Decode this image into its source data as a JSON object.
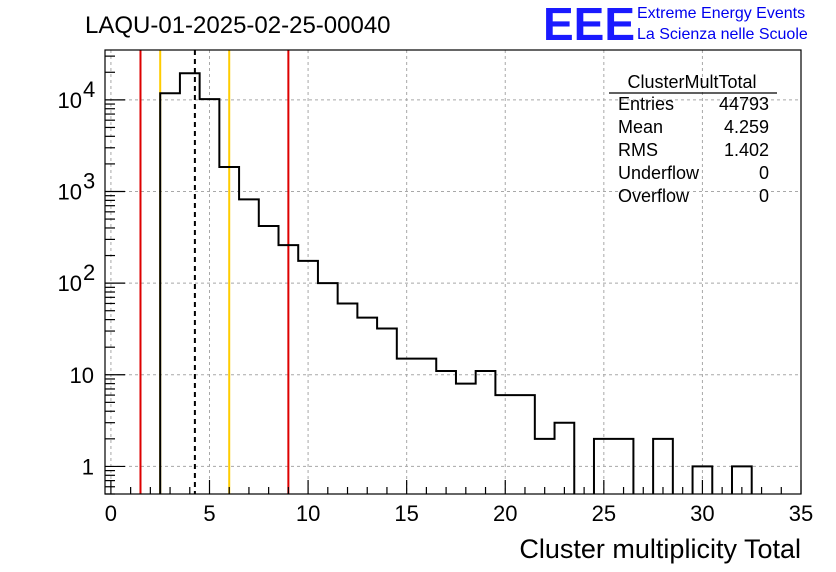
{
  "chart_data": {
    "type": "bar",
    "title": "LAQU-01-2025-02-25-00040",
    "xlabel": "Cluster multiplicity Total",
    "ylabel": "",
    "yscale": "log",
    "xlim": [
      -0.3,
      35
    ],
    "ylim": [
      0.5,
      35000
    ],
    "bin_width": 1,
    "bin_edges_start": 0.5,
    "counts": [
      0,
      0,
      11800,
      19500,
      10200,
      1850,
      820,
      420,
      260,
      175,
      100,
      60,
      42,
      32,
      15,
      15,
      11,
      8,
      11,
      6,
      6,
      2,
      3,
      0,
      2,
      2,
      0,
      2,
      0,
      1,
      0,
      1,
      0,
      0
    ],
    "x_ticks": [
      0,
      5,
      10,
      15,
      20,
      25,
      30,
      35
    ],
    "x_tick_labels": [
      "0",
      "5",
      "10",
      "15",
      "20",
      "25",
      "30",
      "35"
    ],
    "y_ticks": [
      1,
      10,
      100,
      1000,
      10000
    ],
    "y_tick_labels": [
      {
        "base": "1",
        "exp": ""
      },
      {
        "base": "10",
        "exp": ""
      },
      {
        "base": "10",
        "exp": "2"
      },
      {
        "base": "10",
        "exp": "3"
      },
      {
        "base": "10",
        "exp": "4"
      }
    ],
    "vlines": [
      {
        "x": 1.5,
        "color": "#dd0000",
        "style": "solid"
      },
      {
        "x": 2.5,
        "color": "#ffcc00",
        "style": "solid"
      },
      {
        "x": 4.259,
        "color": "#000000",
        "style": "dashed"
      },
      {
        "x": 6.0,
        "color": "#ffcc00",
        "style": "solid"
      },
      {
        "x": 9.0,
        "color": "#dd0000",
        "style": "solid"
      }
    ],
    "grid": true,
    "stats_box": {
      "name": "ClusterMultTotal",
      "rows": [
        {
          "label": "Entries",
          "value": "44793"
        },
        {
          "label": "Mean",
          "value": "4.259"
        },
        {
          "label": "RMS",
          "value": "1.402"
        },
        {
          "label": "Underflow",
          "value": "0"
        },
        {
          "label": "Overflow",
          "value": "0"
        }
      ]
    }
  },
  "logo": {
    "letters": "EEE",
    "line1": "Extreme Energy Events",
    "line2": "La Scienza nelle Scuole",
    "color": "#1a1aff"
  }
}
